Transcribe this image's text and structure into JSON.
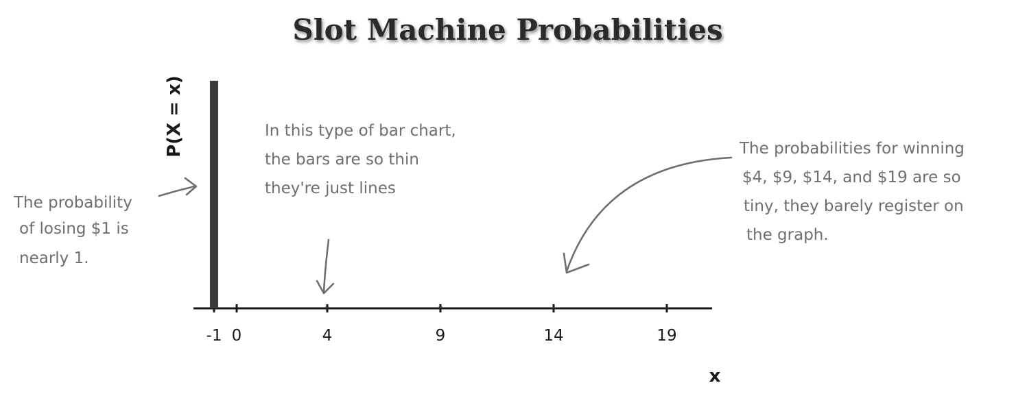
{
  "chart_data": {
    "type": "bar",
    "title": "Slot Machine Probabilities",
    "xlabel": "x",
    "ylabel": "P(X = x)",
    "x": [
      -1,
      4,
      9,
      14,
      19
    ],
    "values": [
      0.977,
      0.008,
      0.008,
      0.004,
      0.003
    ],
    "xtick_labels": [
      "-1",
      "0",
      "4",
      "9",
      "14",
      "19"
    ],
    "xlim": [
      -2,
      20
    ],
    "ylim": [
      0,
      1
    ],
    "grid": false,
    "legend": "none",
    "bar_color": "#3a3a3a",
    "annotations": {
      "left": [
        "The probability",
        "of losing $1 is",
        "nearly 1."
      ],
      "middle": [
        "In this type of bar chart,",
        "the bars are so thin",
        "they're just lines"
      ],
      "right": [
        "The probabilities for winning",
        "$4, $9, $14, and $19 are so",
        "tiny, they barely register on",
        "the graph."
      ]
    }
  }
}
